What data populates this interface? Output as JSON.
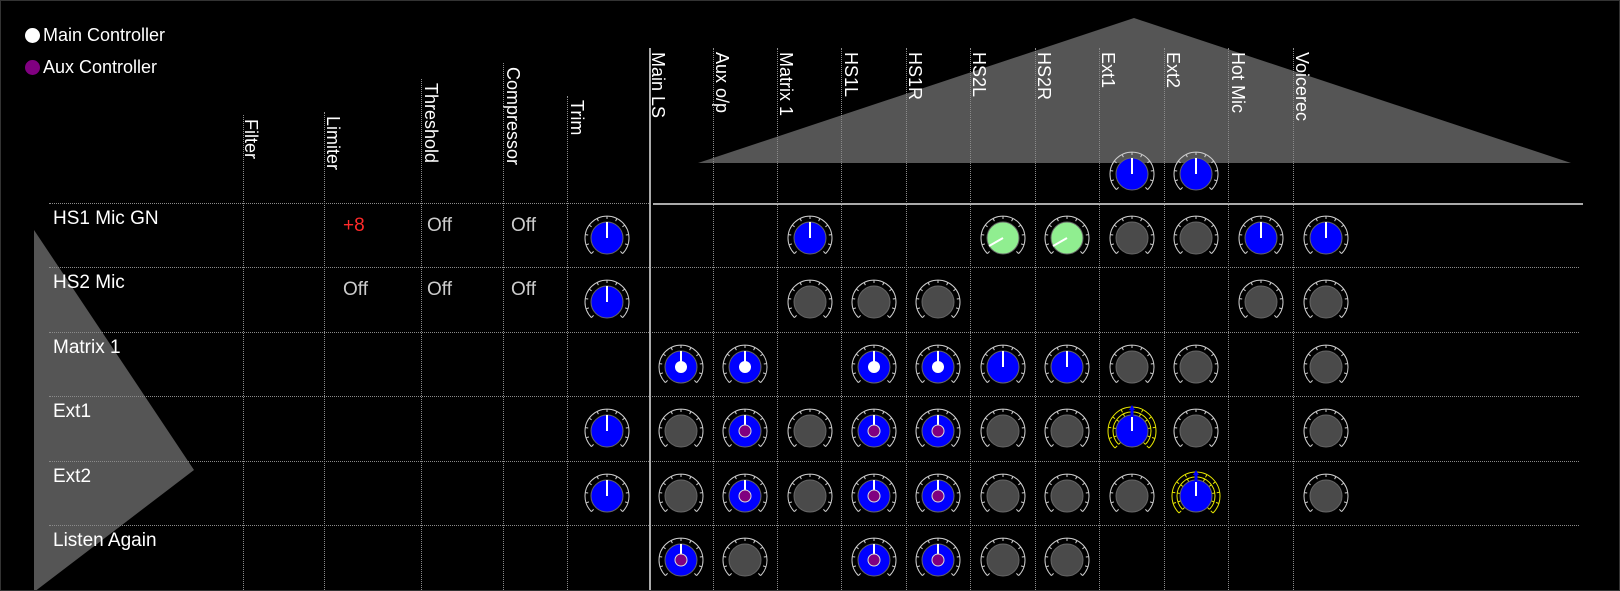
{
  "legend": {
    "main_label": "Main Controller",
    "aux_label": "Aux Controller",
    "main_color": "#ffffff",
    "aux_color": "#800080"
  },
  "processing_columns": [
    "Filter",
    "Limiter",
    "Threshold",
    "Compressor",
    "Trim"
  ],
  "output_columns": [
    "Main LS",
    "Aux o/p",
    "Matrix 1",
    "HS1L",
    "HS1R",
    "HS2L",
    "HS2R",
    "Ext1",
    "Ext2",
    "Hot Mic",
    "Voicerec"
  ],
  "output_header_knobs": [
    null,
    null,
    null,
    null,
    null,
    null,
    null,
    "blue",
    "blue",
    null,
    null
  ],
  "rows": [
    {
      "label": "HS1 Mic GN",
      "limiter": "+8",
      "limiter_red": true,
      "threshold": "Off",
      "compressor": "Off",
      "trim": "blue",
      "cells": [
        null,
        null,
        "blue",
        null,
        null,
        "green",
        "green",
        "grey",
        "grey",
        "blue",
        "blue"
      ]
    },
    {
      "label": "HS2 Mic",
      "limiter": "Off",
      "limiter_red": false,
      "threshold": "Off",
      "compressor": "Off",
      "trim": "blue",
      "cells": [
        null,
        null,
        "grey",
        "grey",
        "grey",
        null,
        null,
        null,
        null,
        "grey",
        "grey"
      ]
    },
    {
      "label": "Matrix 1",
      "limiter": "",
      "limiter_red": false,
      "threshold": "",
      "compressor": "",
      "trim": null,
      "cells": [
        "blue-white",
        "blue-white",
        null,
        "blue-white",
        "blue-white",
        "blue",
        "blue",
        "grey",
        "grey",
        null,
        "grey"
      ]
    },
    {
      "label": "Ext1",
      "limiter": "",
      "limiter_red": false,
      "threshold": "",
      "compressor": "",
      "trim": "blue",
      "cells": [
        "grey",
        "blue-purple",
        "grey",
        "blue-purple",
        "blue-purple",
        "grey",
        "grey",
        "blue-yellow",
        "grey",
        null,
        "grey"
      ]
    },
    {
      "label": "Ext2",
      "limiter": "",
      "limiter_red": false,
      "threshold": "",
      "compressor": "",
      "trim": "blue",
      "cells": [
        "grey",
        "blue-purple",
        "grey",
        "blue-purple",
        "blue-purple",
        "grey",
        "grey",
        "grey",
        "blue-yellow",
        null,
        "grey"
      ]
    },
    {
      "label": "Listen Again",
      "limiter": "",
      "limiter_red": false,
      "threshold": "",
      "compressor": "",
      "trim": null,
      "cells": [
        "blue-purple",
        "grey",
        null,
        "blue-purple",
        "blue-purple",
        "grey",
        "grey",
        null,
        null,
        null,
        null
      ]
    }
  ],
  "colors": {
    "knob_blue": "#0000ff",
    "knob_grey": "#4a4a4a",
    "knob_green": "#90ee90",
    "accent_red": "#ff2a2a",
    "accent_yellow": "#e8e800",
    "triangle_grey": "#555555"
  }
}
